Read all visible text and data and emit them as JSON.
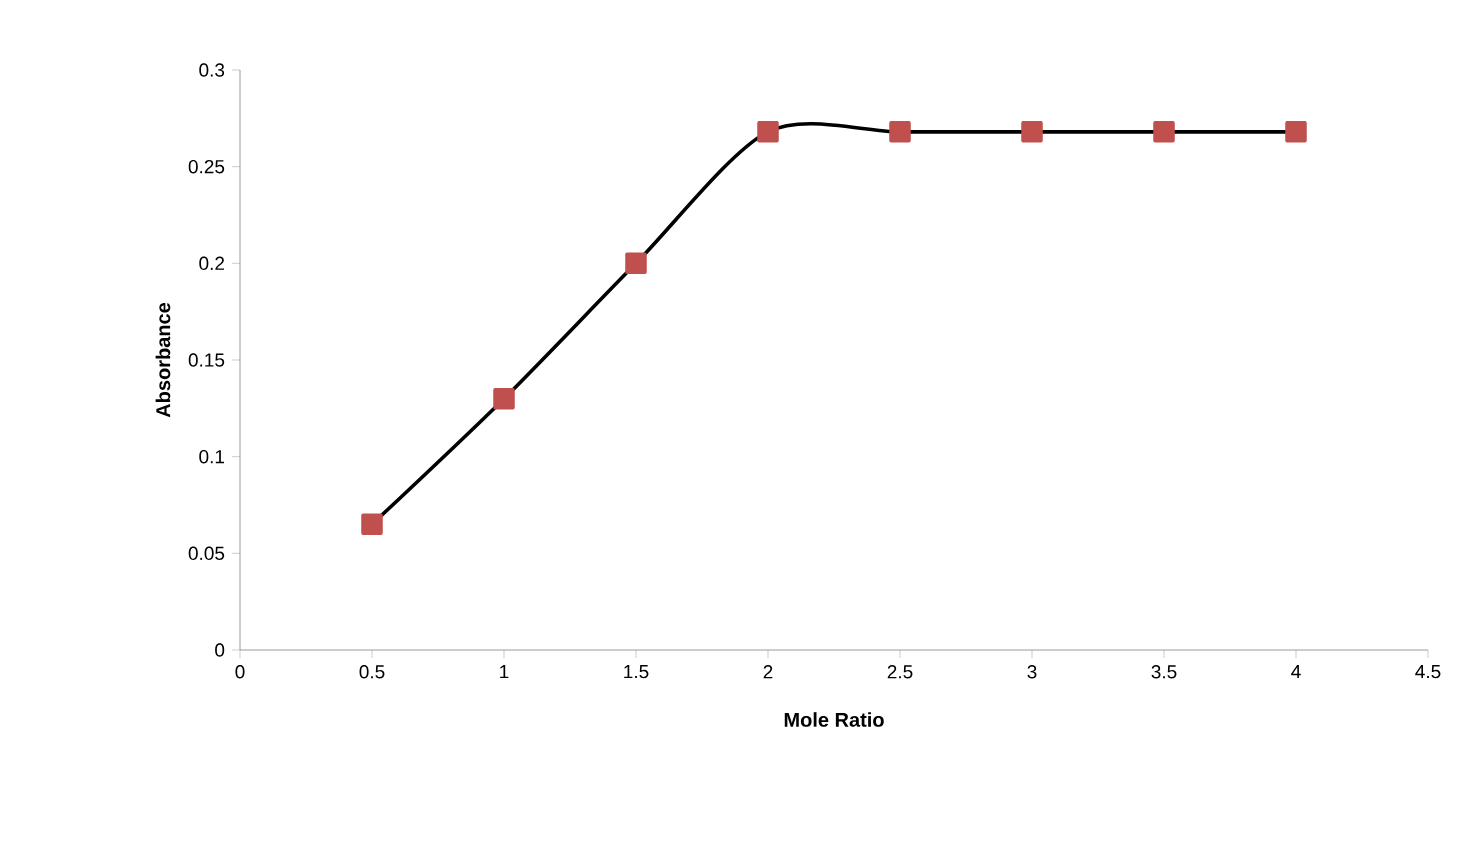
{
  "chart_data": {
    "type": "line",
    "xlabel": "Mole Ratio",
    "ylabel": "Absorbance",
    "x": [
      0.5,
      1,
      1.5,
      2,
      2.5,
      3,
      3.5,
      4
    ],
    "series": [
      {
        "color": "#c0504d",
        "values": [
          0.065,
          0.13,
          0.2,
          0.268,
          0.268,
          0.268,
          0.268,
          0.268
        ]
      }
    ],
    "xlim": [
      0,
      4.5
    ],
    "xticks": [
      0,
      0.5,
      1,
      1.5,
      2,
      2.5,
      3,
      3.5,
      4,
      4.5
    ],
    "ylim": [
      0,
      0.3
    ],
    "yticks": [
      0,
      0.05,
      0.1,
      0.15,
      0.2,
      0.25,
      0.3
    ],
    "grid": false,
    "marker": "square",
    "line_style": "solid"
  }
}
